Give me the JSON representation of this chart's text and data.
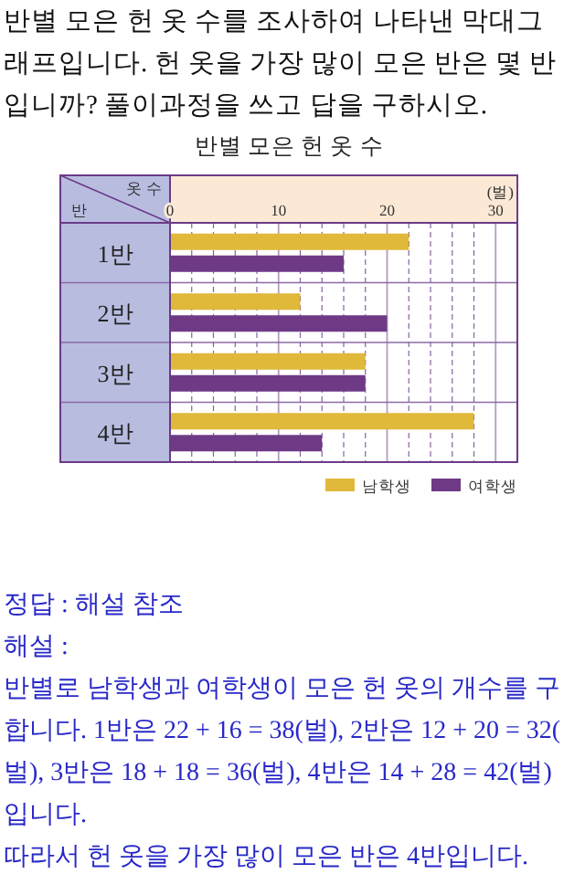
{
  "chart_data": {
    "type": "bar",
    "orientation": "horizontal",
    "title": "반별 모은 헌 옷 수",
    "xlabel": "옷 수",
    "ylabel": "반",
    "categories": [
      "1반",
      "2반",
      "3반",
      "4반"
    ],
    "series": [
      {
        "name": "남학생",
        "color": "#e0b83a",
        "values": [
          22,
          12,
          18,
          28
        ]
      },
      {
        "name": "여학생",
        "color": "#6e3a86",
        "values": [
          16,
          20,
          18,
          14
        ]
      }
    ],
    "xlim": [
      0,
      32
    ],
    "xticks": [
      0,
      {
        "value": 2,
        "label": null
      },
      {
        "value": 4,
        "label": null
      },
      {
        "value": 6,
        "label": null
      },
      {
        "value": 8,
        "label": null
      },
      10,
      {
        "value": 12,
        "label": null
      },
      {
        "value": 14,
        "label": null
      },
      {
        "value": 16,
        "label": null
      },
      {
        "value": 18,
        "label": null
      },
      20,
      {
        "value": 22,
        "label": null
      },
      {
        "value": 24,
        "label": null
      },
      {
        "value": 26,
        "label": null
      },
      {
        "value": 28,
        "label": null
      },
      30
    ],
    "grid": "x",
    "legend": "bottom right",
    "annotations": [
      "반별 모은 헌 옷 수를 조사하여 나타낸 막대그래프입니다. 헌 옷을 가장 많이 모은 반은 몇 반입니까? 풀이과정을 쓰고 답을 구하시오.",
      "(벌)",
      "정답 : 해설 참조",
      "해설 :",
      "반별로 남학생과 여학생이 모은 헌 옷의 개수를 구합니다. 1반은 22 + 16 = 38(벌), 2반은 12 + 20 = 32(벌), 3반은 18 + 18 = 36(벌), 4반은 14 + 28 = 42(벌)입니다.",
      "따라서 헌 옷을 가장 많이 모은 반은 4반입니다."
    ]
  }
}
